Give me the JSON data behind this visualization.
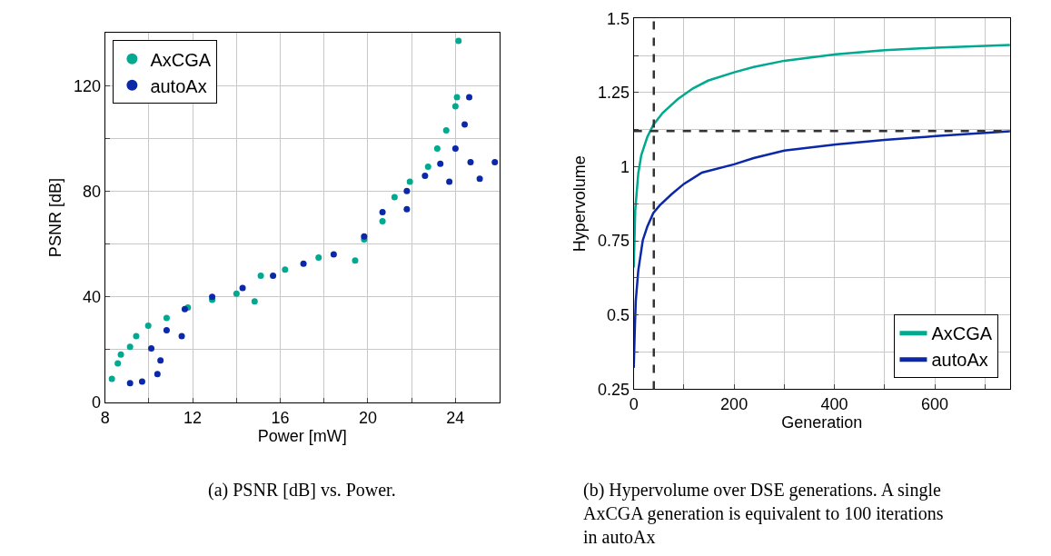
{
  "chart_data": [
    {
      "type": "scatter",
      "xlabel": "Power [mW]",
      "ylabel": "PSNR [dB]",
      "xlim": [
        8,
        26
      ],
      "ylim": [
        0,
        140
      ],
      "xticks": [
        8,
        {
          "value": 10,
          "label": null
        },
        12,
        {
          "value": 14,
          "label": null
        },
        16,
        {
          "value": 18,
          "label": null
        },
        20,
        {
          "value": 22,
          "label": null
        },
        24,
        {
          "value": 26,
          "label": null
        }
      ],
      "yticks": [
        0,
        {
          "value": 20,
          "label": null
        },
        40,
        {
          "value": 60,
          "label": null
        },
        80,
        {
          "value": 100,
          "label": null
        },
        120
      ],
      "grid": true,
      "legend": "top left",
      "marker": "circle",
      "annotations": [
        "(a) PSNR [dB] vs. Power."
      ],
      "series": [
        {
          "name": "AxCGA",
          "color": "#00a98f",
          "x": [
            8.31,
            8.58,
            8.72,
            9.14,
            9.42,
            9.97,
            10.81,
            11.78,
            12.89,
            14.0,
            14.83,
            15.11,
            16.22,
            17.75,
            19.42,
            19.83,
            20.67,
            21.22,
            21.92,
            22.75,
            23.17,
            23.58,
            24.0,
            24.07,
            24.14
          ],
          "values": [
            9.0,
            14.8,
            18.2,
            21.1,
            25.1,
            29.1,
            32.0,
            36.0,
            38.9,
            41.2,
            38.3,
            48.0,
            50.3,
            54.9,
            53.8,
            61.8,
            68.7,
            77.8,
            83.6,
            89.3,
            96.2,
            103.1,
            112.2,
            115.6,
            136.9
          ]
        },
        {
          "name": "autoAx",
          "color": "#0b28a8",
          "x": [
            9.14,
            9.69,
            10.39,
            10.53,
            10.11,
            10.81,
            11.5,
            11.64,
            12.89,
            14.28,
            15.67,
            17.06,
            18.44,
            19.83,
            20.67,
            21.78,
            21.78,
            22.61,
            23.31,
            23.72,
            24.69,
            25.11,
            25.8,
            24.0,
            24.42,
            24.63
          ],
          "values": [
            7.3,
            7.9,
            10.8,
            15.9,
            20.5,
            27.4,
            25.1,
            35.4,
            40.0,
            43.4,
            48.0,
            52.6,
            56.1,
            62.9,
            72.1,
            73.2,
            80.1,
            85.9,
            90.4,
            83.6,
            91.0,
            84.7,
            91.0,
            96.2,
            105.3,
            115.6
          ]
        }
      ]
    },
    {
      "type": "line",
      "xlabel": "Generation",
      "ylabel": "Hypervolume",
      "xlim": [
        0,
        750
      ],
      "ylim": [
        0.25,
        1.5
      ],
      "xticks": [
        0,
        {
          "value": 100,
          "label": null
        },
        200,
        {
          "value": 300,
          "label": null
        },
        400,
        {
          "value": 500,
          "label": null
        },
        600,
        {
          "value": 700,
          "label": null
        }
      ],
      "yticks": [
        0.25,
        {
          "value": 0.375,
          "label": null
        },
        0.5,
        {
          "value": 0.625,
          "label": null
        },
        0.75,
        {
          "value": 0.875,
          "label": null
        },
        1,
        {
          "value": 1.125,
          "label": null
        },
        1.25,
        {
          "value": 1.375,
          "label": null
        },
        1.5
      ],
      "grid": true,
      "legend": "bottom right",
      "marker": "none",
      "line_style": "solid",
      "ref_lines": [
        {
          "axis": "x",
          "value": 40,
          "color": "#333333",
          "line_style": "dashed"
        },
        {
          "axis": "y",
          "value": 1.12,
          "color": "#333333",
          "line_style": "dashed"
        }
      ],
      "annotations": [
        "(b) Hypervolume over DSE generations. A single AxCGA generation is equivalent to 100 iterations in autoAx"
      ],
      "series": [
        {
          "name": "AxCGA",
          "color": "#00a98f",
          "x": [
            0,
            3,
            9,
            15,
            27,
            39,
            58,
            88,
            118,
            148,
            200,
            239,
            300,
            403,
            500,
            602,
            750
          ],
          "values": [
            0.66,
            0.854,
            0.977,
            1.039,
            1.1,
            1.141,
            1.182,
            1.228,
            1.264,
            1.29,
            1.318,
            1.336,
            1.357,
            1.379,
            1.393,
            1.401,
            1.41
          ]
        },
        {
          "name": "autoAx",
          "color": "#0b28a8",
          "x": [
            0,
            2,
            4,
            9,
            18,
            27,
            39,
            52,
            76,
            100,
            136,
            200,
            239,
            300,
            403,
            500,
            602,
            750
          ],
          "values": [
            0.322,
            0.445,
            0.547,
            0.65,
            0.752,
            0.798,
            0.844,
            0.87,
            0.908,
            0.942,
            0.98,
            1.008,
            1.029,
            1.054,
            1.075,
            1.09,
            1.103,
            1.119
          ]
        }
      ]
    }
  ]
}
